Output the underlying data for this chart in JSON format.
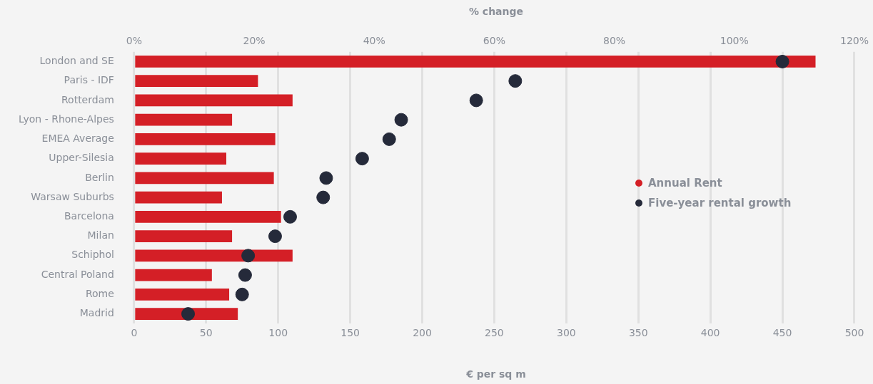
{
  "chart_data": {
    "type": "bar",
    "orientation": "horizontal",
    "xlabel": "€ per sq m",
    "x2label": "% change",
    "categories": [
      "London and SE",
      "Paris - IDF",
      "Rotterdam",
      "Lyon - Rhone-Alpes",
      "EMEA Average",
      "Upper-Silesia",
      "Berlin",
      "Warsaw Suburbs",
      "Barcelona",
      "Milan",
      "Schiphol",
      "Central Poland",
      "Rome",
      "Madrid"
    ],
    "series": [
      {
        "name": "Annual Rent",
        "color": "#d41f26",
        "values": [
          473,
          86,
          110,
          68,
          98,
          64,
          97,
          61,
          102,
          68,
          110,
          54,
          66,
          72
        ]
      },
      {
        "name": "Five-year rental growth",
        "type": "scatter",
        "axis": "x2",
        "color": "#252a3a",
        "values": [
          108,
          63.5,
          57,
          44.5,
          42.5,
          38,
          32,
          31.5,
          26,
          23.5,
          19,
          18.5,
          18,
          9
        ]
      }
    ],
    "xlim": [
      0,
      500
    ],
    "xticks": [
      0,
      50,
      100,
      150,
      200,
      250,
      300,
      350,
      400,
      450,
      500
    ],
    "x2lim": [
      0,
      120
    ],
    "x2ticks": [
      {
        "value": 0,
        "label": "0%"
      },
      {
        "value": 20,
        "label": "20%"
      },
      {
        "value": 40,
        "label": "40%"
      },
      {
        "value": 60,
        "label": "60%"
      },
      {
        "value": 80,
        "label": "80%"
      },
      {
        "value": 100,
        "label": "100%"
      },
      {
        "value": 120,
        "label": "120%"
      }
    ],
    "grid": "x",
    "legend": "center right",
    "marker": "circle"
  }
}
